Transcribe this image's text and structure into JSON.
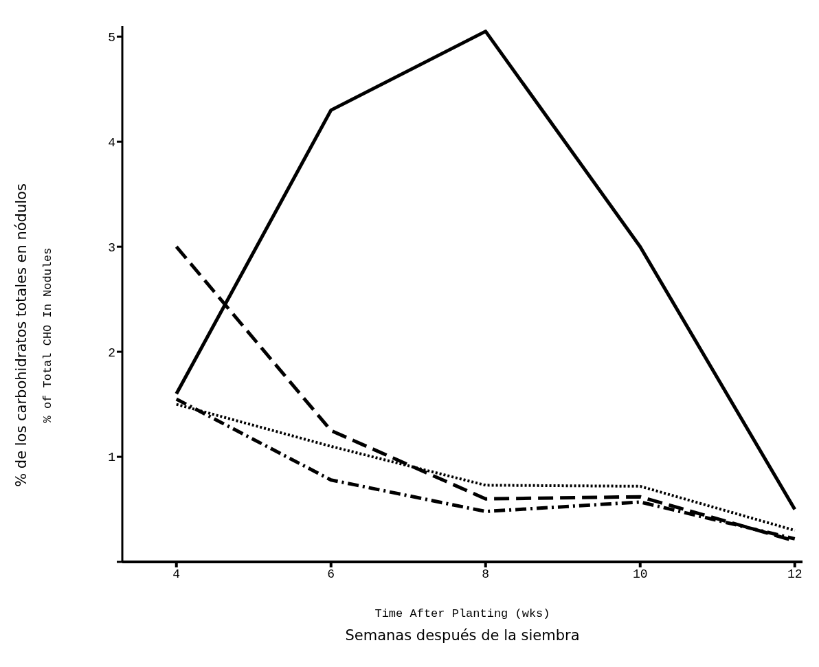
{
  "chart_data": {
    "type": "line",
    "xlabel": "Time After Planting (wks)\nSemanas después de la siembra",
    "ylabel": "% de los carbohidratos totales en nódulos\n% of Total CHO In Nodules",
    "x": [
      4,
      6,
      8,
      10,
      12
    ],
    "series": [
      {
        "color": "#000000",
        "line_style": "solid",
        "values": [
          1.6,
          4.3,
          5.05,
          3.0,
          0.5
        ]
      },
      {
        "color": "#000000",
        "line_style": "dashed",
        "values": [
          3.0,
          1.25,
          0.6,
          0.62,
          0.2
        ]
      },
      {
        "color": "#000000",
        "line_style": "dotted",
        "values": [
          1.5,
          1.1,
          0.73,
          0.72,
          0.3
        ]
      },
      {
        "color": "#000000",
        "line_style": "dashdot",
        "values": [
          1.55,
          0.78,
          0.48,
          0.57,
          0.22
        ]
      }
    ],
    "xlim": [
      3.3,
      12.1
    ],
    "ylim": [
      0,
      5.1
    ],
    "xticks": [
      4,
      6,
      8,
      10,
      12
    ],
    "yticks": [
      {
        "value": 0,
        "label": null
      },
      1,
      2,
      3,
      4,
      5
    ],
    "grid": false,
    "legend": false,
    "marker": "none"
  }
}
